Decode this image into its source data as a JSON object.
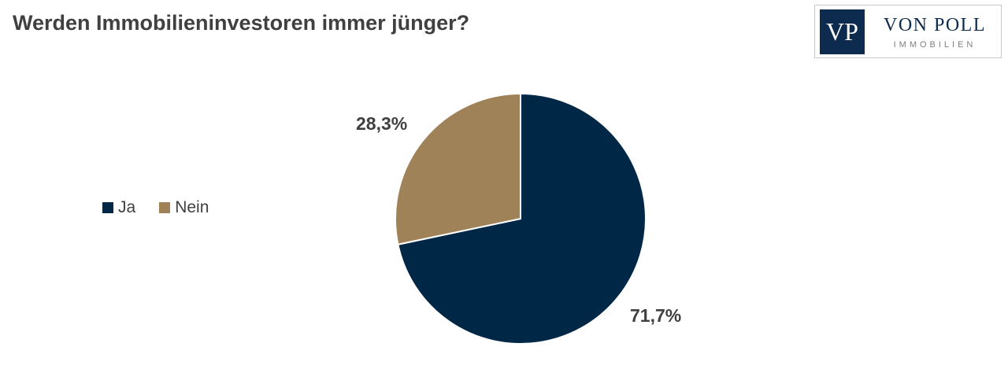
{
  "title": "Werden Immobilieninvestoren immer jünger?",
  "logo": {
    "mark": "VP",
    "name": "VON POLL",
    "subtitle": "IMMOBILIEN"
  },
  "chart_data": {
    "type": "pie",
    "title": "Werden Immobilieninvestoren immer jünger?",
    "legend_position": "left",
    "slices": [
      {
        "name": "Ja",
        "value": 71.7,
        "label": "71,7%",
        "color": "#002846"
      },
      {
        "name": "Nein",
        "value": 28.3,
        "label": "28,3%",
        "color": "#9f8258"
      }
    ]
  }
}
